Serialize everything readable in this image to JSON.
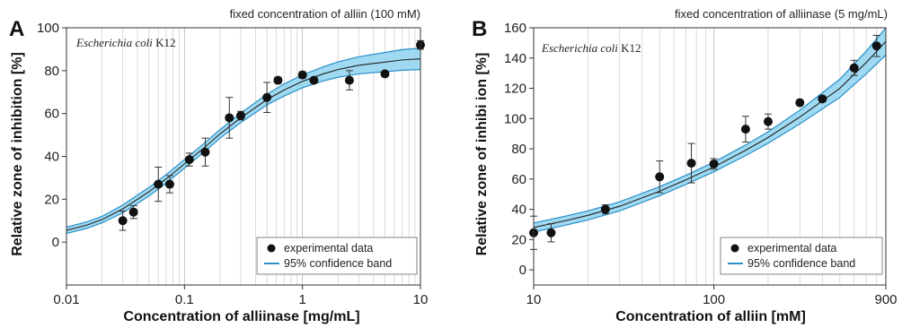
{
  "chart_data": [
    {
      "type": "scatter",
      "panel": "A",
      "note": "fixed concentration of alliin  (100 mM)",
      "organism_italic": "Escherichia coli",
      "organism_strain": "K12",
      "xlabel": "Concentration of alliinase [mg/mL]",
      "ylabel": "Relative zone of inhibition [%]",
      "xscale": "log",
      "xlim": [
        0.01,
        10
      ],
      "ylim": [
        -20,
        100
      ],
      "xticks": [
        0.01,
        0.1,
        1,
        10
      ],
      "xtick_labels": [
        "0.01",
        "0.1",
        "1",
        "10"
      ],
      "yticks": [
        0,
        20,
        40,
        60,
        80,
        100
      ],
      "ytick_labels": [
        "0",
        "20",
        "40",
        "60",
        "80",
        "100"
      ],
      "grid": "vertical",
      "legend": [
        "experimental data",
        "95% confidence band"
      ],
      "legend_position": "bottom-right",
      "colors": {
        "band": "#8fd3f0",
        "band_edge": "#2a8fc7",
        "fit": "#222222",
        "points": "#111111"
      },
      "points": [
        {
          "x": 0.03,
          "y": 10,
          "err": 4.5
        },
        {
          "x": 0.037,
          "y": 14,
          "err": 3
        },
        {
          "x": 0.06,
          "y": 27,
          "err": 8
        },
        {
          "x": 0.075,
          "y": 27,
          "err": 4
        },
        {
          "x": 0.11,
          "y": 38.5,
          "err": 3
        },
        {
          "x": 0.15,
          "y": 42,
          "err": 6.5
        },
        {
          "x": 0.24,
          "y": 58,
          "err": 9.5
        },
        {
          "x": 0.3,
          "y": 59,
          "err": 2
        },
        {
          "x": 0.5,
          "y": 67.5,
          "err": 7
        },
        {
          "x": 0.62,
          "y": 75.5,
          "err": 1.5
        },
        {
          "x": 1.0,
          "y": 78,
          "err": 1.5
        },
        {
          "x": 1.25,
          "y": 75.5,
          "err": 1
        },
        {
          "x": 2.5,
          "y": 75.5,
          "err": 4.5
        },
        {
          "x": 5.0,
          "y": 78.5,
          "err": 1
        },
        {
          "x": 10.0,
          "y": 92,
          "err": 2
        }
      ],
      "fit": {
        "x": [
          0.01,
          0.015,
          0.02,
          0.03,
          0.05,
          0.07,
          0.1,
          0.15,
          0.2,
          0.3,
          0.5,
          0.7,
          1,
          1.5,
          2,
          3,
          5,
          7,
          10
        ],
        "y": [
          5.5,
          8,
          10.5,
          15.5,
          23.5,
          29.5,
          36.5,
          44.5,
          50.5,
          58,
          66.5,
          71,
          75,
          78.5,
          80.5,
          82.5,
          84,
          85,
          85.5
        ],
        "band_halfwidth": [
          1.5,
          1.5,
          1.5,
          1.8,
          2,
          2,
          2,
          2,
          2,
          2.2,
          2.5,
          2.8,
          3,
          3.3,
          3.6,
          4,
          4.5,
          4.8,
          5
        ]
      }
    },
    {
      "type": "scatter",
      "panel": "B",
      "note": "fixed concentration of alliinase (5 mg/mL)",
      "organism_italic": "Escherichia coli",
      "organism_strain": "K12",
      "xlabel": "Concentration of alliin [mM]",
      "ylabel": "Relative zone of inhibi ion [%]",
      "xscale": "log",
      "xlim": [
        10,
        900
      ],
      "ylim": [
        -10,
        160
      ],
      "xticks": [
        10,
        100,
        900
      ],
      "xtick_labels": [
        "10",
        "100",
        "900"
      ],
      "yticks": [
        0,
        20,
        40,
        60,
        80,
        100,
        120,
        140,
        160
      ],
      "ytick_labels": [
        "0",
        "20",
        "40",
        "60",
        "80",
        "100",
        "120",
        "140",
        "160"
      ],
      "grid": "vertical",
      "legend": [
        "experimental data",
        "95% confidence band"
      ],
      "legend_position": "bottom-right",
      "colors": {
        "band": "#8fd3f0",
        "band_edge": "#2a8fc7",
        "fit": "#222222",
        "points": "#111111"
      },
      "points": [
        {
          "x": 10,
          "y": 24.5,
          "err": 11
        },
        {
          "x": 12.5,
          "y": 24.5,
          "err": 6
        },
        {
          "x": 25,
          "y": 40,
          "err": 3
        },
        {
          "x": 50,
          "y": 61.5,
          "err": 10.5
        },
        {
          "x": 75,
          "y": 70.5,
          "err": 13
        },
        {
          "x": 100,
          "y": 70,
          "err": 3.5
        },
        {
          "x": 150,
          "y": 93,
          "err": 8.5
        },
        {
          "x": 200,
          "y": 98,
          "err": 5
        },
        {
          "x": 300,
          "y": 110.5,
          "err": 1.5
        },
        {
          "x": 400,
          "y": 113,
          "err": 1.5
        },
        {
          "x": 600,
          "y": 133.5,
          "err": 5
        },
        {
          "x": 800,
          "y": 148,
          "err": 7
        }
      ],
      "fit": {
        "x": [
          10,
          15,
          20,
          30,
          50,
          70,
          100,
          150,
          200,
          300,
          500,
          700,
          900
        ],
        "y": [
          28,
          32.5,
          36,
          42,
          52,
          59.5,
          68,
          79,
          87.5,
          101,
          120,
          137,
          151
        ],
        "band_halfwidth": [
          3,
          3,
          3,
          3,
          3,
          3,
          3.2,
          3.5,
          3.8,
          4.5,
          6,
          7.5,
          9
        ]
      }
    }
  ]
}
